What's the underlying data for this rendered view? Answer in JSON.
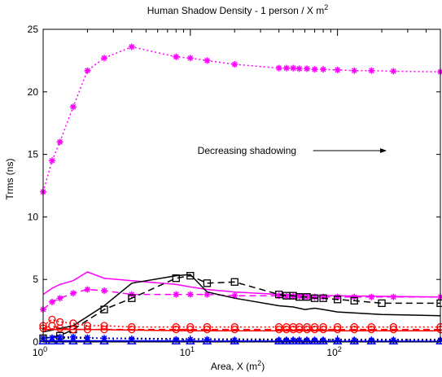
{
  "chart_data": {
    "type": "line",
    "title": "Human Shadow Density - 1 person / X m",
    "title_sup": "2",
    "xlabel": "Area, X (m",
    "xlabel_sup": "2",
    "xlabel_end": ")",
    "ylabel": "Trms (ns)",
    "xscale": "log",
    "xlim": [
      1,
      500
    ],
    "ylim": [
      0,
      25
    ],
    "x_ticks": [
      {
        "base": "10",
        "exp": "0",
        "value": 1
      },
      {
        "base": "10",
        "exp": "1",
        "value": 10
      },
      {
        "base": "10",
        "exp": "2",
        "value": 100
      }
    ],
    "y_ticks": [
      0,
      5,
      10,
      15,
      20,
      25
    ],
    "grid": false,
    "annotation": {
      "text": "Decreasing shadowing",
      "x": 40,
      "y": 15.3,
      "arrow_to_x": 200
    },
    "colors": {
      "magenta": "#ff00ff",
      "red": "#ff0000",
      "black": "#000000",
      "blue": "#0000ff"
    },
    "series": [
      {
        "color": "#ff00ff",
        "dash": "2,3",
        "marker": "star",
        "x": [
          1,
          1.15,
          1.3,
          1.6,
          2,
          2.6,
          4,
          8,
          10,
          13,
          20,
          40,
          45,
          50,
          55,
          62,
          70,
          80,
          100,
          130,
          170,
          240,
          500
        ],
        "y": [
          12.0,
          14.5,
          16.0,
          18.8,
          21.7,
          22.7,
          23.6,
          22.8,
          22.7,
          22.5,
          22.2,
          21.9,
          21.9,
          21.9,
          21.85,
          21.85,
          21.8,
          21.8,
          21.75,
          21.7,
          21.7,
          21.65,
          21.6
        ]
      },
      {
        "color": "#ff00ff",
        "dash": "",
        "marker": "",
        "x": [
          1,
          1.15,
          1.3,
          1.6,
          2,
          2.6,
          4,
          8,
          10,
          13,
          20,
          40,
          60,
          100,
          200,
          500
        ],
        "y": [
          3.8,
          4.3,
          4.6,
          4.9,
          5.6,
          5.1,
          4.9,
          4.6,
          4.4,
          4.2,
          4.0,
          3.8,
          3.75,
          3.7,
          3.65,
          3.6
        ]
      },
      {
        "color": "#ff00ff",
        "dash": "8,5",
        "marker": "star",
        "x": [
          1,
          1.15,
          1.3,
          1.6,
          2,
          2.6,
          4,
          8,
          10,
          13,
          20,
          40,
          45,
          50,
          55,
          62,
          70,
          80,
          100,
          130,
          170,
          240,
          500
        ],
        "y": [
          2.6,
          3.2,
          3.5,
          3.9,
          4.2,
          4.1,
          3.8,
          3.8,
          3.8,
          3.8,
          3.7,
          3.7,
          3.65,
          3.65,
          3.65,
          3.6,
          3.6,
          3.6,
          3.6,
          3.6,
          3.6,
          3.6,
          3.6
        ]
      },
      {
        "color": "#000000",
        "dash": "8,5",
        "marker": "square",
        "x": [
          1,
          1.3,
          1.6,
          2.6,
          4,
          8,
          10,
          13,
          20,
          40,
          45,
          50,
          55,
          62,
          70,
          80,
          100,
          130,
          200,
          500
        ],
        "y": [
          0.3,
          0.5,
          1.0,
          2.6,
          3.5,
          5.1,
          5.3,
          4.7,
          4.8,
          3.8,
          3.7,
          3.7,
          3.6,
          3.6,
          3.5,
          3.5,
          3.4,
          3.3,
          3.1,
          3.1
        ]
      },
      {
        "color": "#000000",
        "dash": "",
        "marker": "",
        "x": [
          1,
          1.6,
          2.6,
          4,
          8,
          10,
          13,
          20,
          40,
          50,
          60,
          70,
          80,
          100,
          200,
          500
        ],
        "y": [
          0.8,
          1.3,
          2.9,
          4.7,
          5.3,
          5.4,
          4.0,
          3.5,
          2.9,
          2.8,
          2.6,
          2.7,
          2.6,
          2.4,
          2.2,
          2.1
        ]
      },
      {
        "color": "#ff0000",
        "dash": "2,3",
        "marker": "circle",
        "x": [
          1,
          1.15,
          1.3,
          1.6,
          2,
          2.6,
          4,
          8,
          10,
          13,
          20,
          40,
          45,
          50,
          55,
          62,
          70,
          80,
          100,
          130,
          170,
          240,
          500
        ],
        "y": [
          1.3,
          1.8,
          1.6,
          1.5,
          1.3,
          1.3,
          1.2,
          1.2,
          1.2,
          1.2,
          1.2,
          1.2,
          1.2,
          1.2,
          1.2,
          1.2,
          1.2,
          1.2,
          1.2,
          1.2,
          1.2,
          1.2,
          1.2
        ]
      },
      {
        "color": "#ff0000",
        "dash": "",
        "marker": "",
        "x": [
          1,
          2,
          4,
          10,
          100,
          500
        ],
        "y": [
          1.0,
          1.0,
          0.95,
          0.9,
          0.9,
          0.9
        ]
      },
      {
        "color": "#ff0000",
        "dash": "8,5",
        "marker": "circle",
        "x": [
          1,
          1.15,
          1.3,
          1.6,
          2,
          2.6,
          4,
          8,
          10,
          13,
          20,
          40,
          45,
          50,
          55,
          62,
          70,
          80,
          100,
          130,
          170,
          240,
          500
        ],
        "y": [
          1.1,
          1.3,
          1.1,
          1.0,
          1.0,
          1.0,
          1.0,
          1.0,
          1.0,
          1.0,
          1.0,
          1.0,
          1.0,
          1.0,
          1.0,
          1.0,
          1.0,
          1.0,
          1.0,
          1.0,
          1.0,
          1.0,
          1.0
        ]
      },
      {
        "color": "#000000",
        "dash": "2,3",
        "marker": "",
        "x": [
          1,
          2,
          4,
          10,
          100,
          500
        ],
        "y": [
          0.35,
          0.3,
          0.3,
          0.25,
          0.2,
          0.2
        ]
      },
      {
        "color": "#0000ff",
        "dash": "2,3",
        "marker": "star",
        "x": [
          1,
          1.15,
          1.3,
          1.6,
          2,
          2.6,
          4,
          8,
          10,
          13,
          20,
          40,
          45,
          50,
          55,
          62,
          70,
          80,
          100,
          130,
          170,
          240,
          500
        ],
        "y": [
          0.3,
          0.35,
          0.4,
          0.4,
          0.35,
          0.3,
          0.25,
          0.2,
          0.2,
          0.2,
          0.15,
          0.15,
          0.15,
          0.15,
          0.15,
          0.15,
          0.15,
          0.15,
          0.15,
          0.15,
          0.15,
          0.15,
          0.15
        ]
      },
      {
        "color": "#0000ff",
        "dash": "",
        "marker": "",
        "x": [
          1,
          2,
          4,
          10,
          100,
          500
        ],
        "y": [
          0.12,
          0.1,
          0.1,
          0.08,
          0.06,
          0.05
        ]
      },
      {
        "color": "#0000ff",
        "dash": "",
        "marker": "triangle",
        "x": [
          1,
          1.15,
          1.3,
          1.6,
          2,
          2.6,
          4,
          8,
          10,
          13,
          20,
          40,
          45,
          50,
          55,
          62,
          70,
          80,
          100,
          130,
          170,
          240,
          500
        ],
        "y": [
          0.05,
          0.05,
          0.05,
          0.05,
          0.05,
          0.05,
          0.05,
          0.05,
          0.05,
          0.05,
          0.05,
          0.05,
          0.05,
          0.05,
          0.05,
          0.05,
          0.05,
          0.05,
          0.05,
          0.05,
          0.05,
          0.05,
          0.05
        ]
      }
    ]
  }
}
